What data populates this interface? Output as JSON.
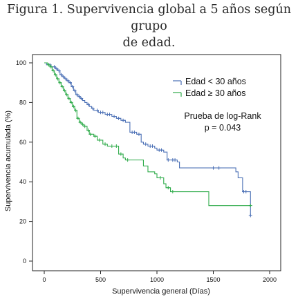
{
  "figure": {
    "title_line1": "Figura 1. Supervivencia global a 5 años según grupo",
    "title_line2": "de edad."
  },
  "chart_data": {
    "type": "line",
    "step": true,
    "xlabel": "Supervivencia general (Días)",
    "ylabel": "Supervivencia acumulada (%)",
    "xlim": [
      0,
      2000
    ],
    "ylim": [
      0,
      100
    ],
    "xticks": [
      0,
      500,
      1000,
      1500,
      2000
    ],
    "yticks": [
      0,
      20,
      40,
      60,
      80,
      100
    ],
    "grid": false,
    "legend_position": "top-right",
    "annotation": [
      "Prueba de log-Rank",
      "p = 0.043"
    ],
    "series": [
      {
        "name": "Edad < 30 años",
        "color": "#4a6fb5",
        "points": [
          [
            0,
            100
          ],
          [
            20,
            99
          ],
          [
            40,
            99
          ],
          [
            60,
            98
          ],
          [
            80,
            98
          ],
          [
            100,
            97
          ],
          [
            120,
            96
          ],
          [
            140,
            94
          ],
          [
            160,
            93
          ],
          [
            180,
            92
          ],
          [
            200,
            91
          ],
          [
            220,
            90
          ],
          [
            240,
            88
          ],
          [
            260,
            86
          ],
          [
            280,
            84
          ],
          [
            300,
            83
          ],
          [
            320,
            82
          ],
          [
            340,
            81
          ],
          [
            360,
            80
          ],
          [
            380,
            79
          ],
          [
            400,
            78
          ],
          [
            420,
            77
          ],
          [
            440,
            76
          ],
          [
            480,
            75
          ],
          [
            540,
            74
          ],
          [
            600,
            73
          ],
          [
            640,
            72
          ],
          [
            680,
            71
          ],
          [
            720,
            70
          ],
          [
            760,
            65
          ],
          [
            820,
            64
          ],
          [
            860,
            60
          ],
          [
            880,
            59
          ],
          [
            920,
            58
          ],
          [
            980,
            57
          ],
          [
            1000,
            56
          ],
          [
            1060,
            55
          ],
          [
            1090,
            51
          ],
          [
            1180,
            50
          ],
          [
            1200,
            47
          ],
          [
            1380,
            47
          ],
          [
            1480,
            47
          ],
          [
            1700,
            45
          ],
          [
            1720,
            42
          ],
          [
            1760,
            35
          ],
          [
            1820,
            35
          ],
          [
            1830,
            23
          ]
        ],
        "censored_x": [
          50,
          90,
          110,
          130,
          150,
          170,
          190,
          210,
          230,
          250,
          270,
          290,
          310,
          330,
          390,
          430,
          470,
          500,
          520,
          560,
          580,
          620,
          660,
          700,
          780,
          800,
          840,
          900,
          940,
          960,
          1020,
          1040,
          1100,
          1140,
          1160,
          1500,
          1550,
          1770,
          1790,
          1830
        ]
      },
      {
        "name": "Edad ≥ 30 años",
        "color": "#2eab4a",
        "points": [
          [
            0,
            100
          ],
          [
            30,
            99
          ],
          [
            50,
            98
          ],
          [
            70,
            96
          ],
          [
            90,
            94
          ],
          [
            110,
            92
          ],
          [
            130,
            90
          ],
          [
            150,
            88
          ],
          [
            170,
            86
          ],
          [
            190,
            84
          ],
          [
            210,
            82
          ],
          [
            230,
            80
          ],
          [
            250,
            78
          ],
          [
            270,
            76
          ],
          [
            290,
            72
          ],
          [
            310,
            70
          ],
          [
            330,
            69
          ],
          [
            350,
            68
          ],
          [
            380,
            66
          ],
          [
            400,
            64
          ],
          [
            440,
            63
          ],
          [
            470,
            61
          ],
          [
            520,
            59
          ],
          [
            560,
            58
          ],
          [
            660,
            54
          ],
          [
            700,
            52
          ],
          [
            720,
            51
          ],
          [
            880,
            48
          ],
          [
            920,
            45
          ],
          [
            980,
            44
          ],
          [
            1000,
            42
          ],
          [
            1060,
            39
          ],
          [
            1080,
            37
          ],
          [
            1120,
            35
          ],
          [
            1230,
            35
          ],
          [
            1460,
            28
          ],
          [
            1830,
            28
          ]
        ],
        "censored_x": [
          40,
          60,
          80,
          100,
          120,
          140,
          160,
          180,
          200,
          220,
          240,
          260,
          280,
          300,
          320,
          340,
          360,
          390,
          410,
          450,
          490,
          540,
          600,
          640,
          680,
          740,
          1030,
          1100,
          1140,
          1830
        ]
      }
    ]
  }
}
